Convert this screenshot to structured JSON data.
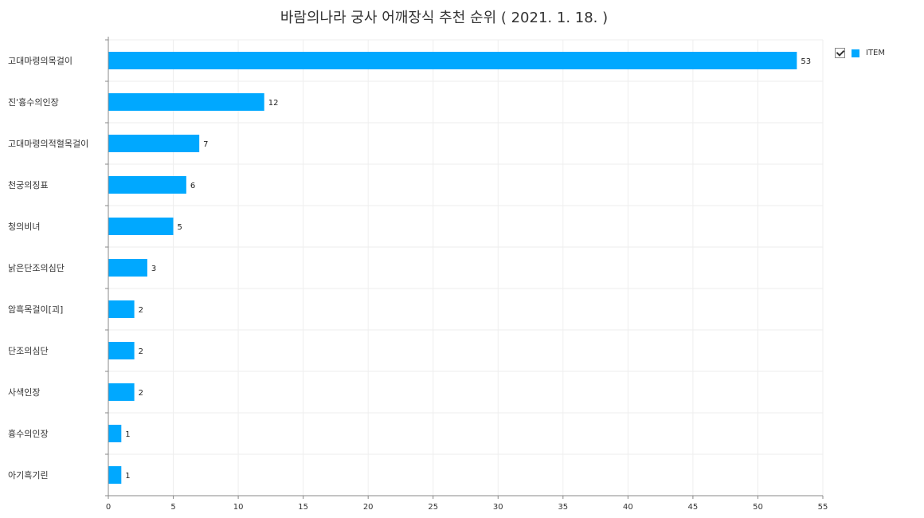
{
  "chart_data": {
    "type": "bar",
    "orientation": "horizontal",
    "title": "바람의나라 궁사 어깨장식 추천 순위 ( 2021. 1. 18. )",
    "categories": [
      "고대마령의목걸이",
      "진'흉수의인장",
      "고대마령의적혈목걸이",
      "천궁의징표",
      "청의비녀",
      "낡은단조의심단",
      "암흑목걸이[괴]",
      "단조의심단",
      "사색인장",
      "흉수의인장",
      "아기흑기린"
    ],
    "series": [
      {
        "name": "ITEM",
        "values": [
          53,
          12,
          7,
          6,
          5,
          3,
          2,
          2,
          2,
          1,
          1
        ]
      }
    ],
    "xlim": [
      0,
      55
    ],
    "xticks": [
      0,
      5,
      10,
      15,
      20,
      25,
      30,
      35,
      40,
      45,
      50,
      55
    ],
    "grid": true,
    "legend_position": "top-right",
    "bar_color": "#00a8ff"
  }
}
